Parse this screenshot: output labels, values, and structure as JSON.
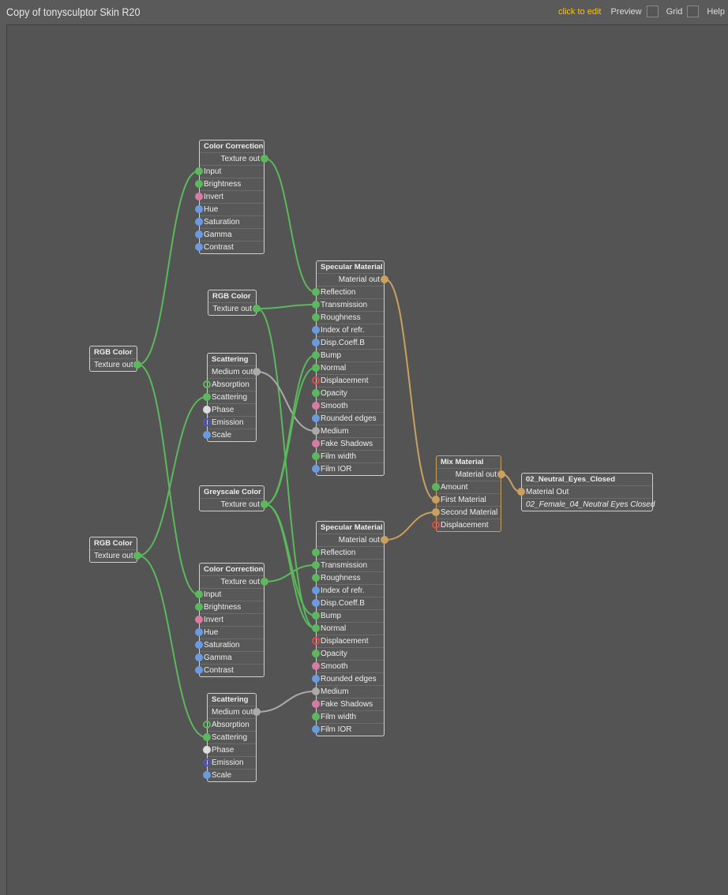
{
  "header": {
    "title": "Copy of tonysculptor Skin R20",
    "edit_link": "click to edit",
    "preview_label": "Preview",
    "grid_label": "Grid",
    "help_label": "Help"
  },
  "socket_colors": {
    "texture": "#5cb85c",
    "texture_hollow": "#5cb85c",
    "int": "#d77aa4",
    "float": "#6a9be0",
    "white": "#dddddd",
    "emission": "#4a55d0",
    "displacement": "#e04848",
    "medium": "#aaaaaa",
    "material": "#c8a060"
  },
  "nodes": [
    {
      "id": "cc1",
      "title": "Color Correction",
      "output": {
        "label": "Texture out",
        "type": "texture"
      },
      "inputs": [
        {
          "label": "Input",
          "type": "texture"
        },
        {
          "label": "Brightness",
          "type": "texture"
        },
        {
          "label": "Invert",
          "type": "int"
        },
        {
          "label": "Hue",
          "type": "float"
        },
        {
          "label": "Saturation",
          "type": "float"
        },
        {
          "label": "Gamma",
          "type": "float"
        },
        {
          "label": "Contrast",
          "type": "float"
        }
      ]
    },
    {
      "id": "rgb1",
      "title": "RGB Color",
      "output": {
        "label": "Texture out",
        "type": "texture"
      },
      "inputs": []
    },
    {
      "id": "rgbL1",
      "title": "RGB Color",
      "output": {
        "label": "Texture out",
        "type": "texture"
      },
      "inputs": []
    },
    {
      "id": "scat1",
      "title": "Scattering",
      "output": {
        "label": "Medium out",
        "type": "medium"
      },
      "inputs": [
        {
          "label": "Absorption",
          "type": "texture_hollow"
        },
        {
          "label": "Scattering",
          "type": "texture"
        },
        {
          "label": "Phase",
          "type": "white"
        },
        {
          "label": "Emission",
          "type": "emission"
        },
        {
          "label": "Scale",
          "type": "float"
        }
      ]
    },
    {
      "id": "spec1",
      "title": "Specular Material",
      "output": {
        "label": "Material out",
        "type": "material"
      },
      "inputs": [
        {
          "label": "Reflection",
          "type": "texture"
        },
        {
          "label": "Transmission",
          "type": "texture"
        },
        {
          "label": "Roughness",
          "type": "texture"
        },
        {
          "label": "Index of refr.",
          "type": "float"
        },
        {
          "label": "Disp.Coeff.B",
          "type": "float"
        },
        {
          "label": "Bump",
          "type": "texture"
        },
        {
          "label": "Normal",
          "type": "texture"
        },
        {
          "label": "Displacement",
          "type": "displacement"
        },
        {
          "label": "Opacity",
          "type": "texture"
        },
        {
          "label": "Smooth",
          "type": "int"
        },
        {
          "label": "Rounded edges",
          "type": "float"
        },
        {
          "label": "Medium",
          "type": "medium"
        },
        {
          "label": "Fake Shadows",
          "type": "int"
        },
        {
          "label": "Film width",
          "type": "texture"
        },
        {
          "label": "Film IOR",
          "type": "float"
        }
      ]
    },
    {
      "id": "grey",
      "title": "Greyscale Color",
      "output": {
        "label": "Texture out",
        "type": "texture"
      },
      "inputs": []
    },
    {
      "id": "rgbL2",
      "title": "RGB Color",
      "output": {
        "label": "Texture out",
        "type": "texture"
      },
      "inputs": []
    },
    {
      "id": "cc2",
      "title": "Color Correction",
      "output": {
        "label": "Texture out",
        "type": "texture"
      },
      "inputs": [
        {
          "label": "Input",
          "type": "texture"
        },
        {
          "label": "Brightness",
          "type": "texture"
        },
        {
          "label": "Invert",
          "type": "int"
        },
        {
          "label": "Hue",
          "type": "float"
        },
        {
          "label": "Saturation",
          "type": "float"
        },
        {
          "label": "Gamma",
          "type": "float"
        },
        {
          "label": "Contrast",
          "type": "float"
        }
      ]
    },
    {
      "id": "scat2",
      "title": "Scattering",
      "output": {
        "label": "Medium out",
        "type": "medium"
      },
      "inputs": [
        {
          "label": "Absorption",
          "type": "texture_hollow"
        },
        {
          "label": "Scattering",
          "type": "texture"
        },
        {
          "label": "Phase",
          "type": "white"
        },
        {
          "label": "Emission",
          "type": "emission"
        },
        {
          "label": "Scale",
          "type": "float"
        }
      ]
    },
    {
      "id": "spec2",
      "title": "Specular Material",
      "output": {
        "label": "Material out",
        "type": "material"
      },
      "inputs": [
        {
          "label": "Reflection",
          "type": "texture"
        },
        {
          "label": "Transmission",
          "type": "texture"
        },
        {
          "label": "Roughness",
          "type": "texture"
        },
        {
          "label": "Index of refr.",
          "type": "float"
        },
        {
          "label": "Disp.Coeff.B",
          "type": "float"
        },
        {
          "label": "Bump",
          "type": "texture"
        },
        {
          "label": "Normal",
          "type": "texture"
        },
        {
          "label": "Displacement",
          "type": "displacement"
        },
        {
          "label": "Opacity",
          "type": "texture"
        },
        {
          "label": "Smooth",
          "type": "int"
        },
        {
          "label": "Rounded edges",
          "type": "float"
        },
        {
          "label": "Medium",
          "type": "medium"
        },
        {
          "label": "Fake Shadows",
          "type": "int"
        },
        {
          "label": "Film width",
          "type": "texture"
        },
        {
          "label": "Film IOR",
          "type": "float"
        }
      ]
    },
    {
      "id": "mix",
      "title": "Mix Material",
      "output": {
        "label": "Material out",
        "type": "material"
      },
      "inputs": [
        {
          "label": "Amount",
          "type": "texture"
        },
        {
          "label": "First Material",
          "type": "material"
        },
        {
          "label": "Second Material",
          "type": "material"
        },
        {
          "label": "Displacement",
          "type": "displacement"
        }
      ]
    },
    {
      "id": "outnode",
      "title": "02_Neutral_Eyes_Closed",
      "output": null,
      "inputs": [
        {
          "label": "Material Out",
          "type": "material"
        }
      ],
      "footer": "02_Female_04_Neutral Eyes Closed"
    }
  ],
  "connections": [
    [
      "rgbL1",
      "cc1",
      0
    ],
    [
      "rgbL1",
      "cc2",
      0
    ],
    [
      "rgbL2",
      "scat1",
      1
    ],
    [
      "rgbL2",
      "scat2",
      1
    ],
    [
      "cc1",
      "spec1",
      0
    ],
    [
      "rgb1",
      "spec1",
      1
    ],
    [
      "rgb1",
      "spec2",
      6
    ],
    [
      "scat1",
      "spec1",
      11
    ],
    [
      "grey",
      "spec1",
      5
    ],
    [
      "grey",
      "spec1",
      6
    ],
    [
      "grey",
      "spec2",
      5
    ],
    [
      "grey",
      "spec2",
      6
    ],
    [
      "cc2",
      "spec2",
      1
    ],
    [
      "scat2",
      "spec2",
      11
    ],
    [
      "spec1",
      "mix",
      1
    ],
    [
      "spec2",
      "mix",
      2
    ],
    [
      "mix",
      "outnode",
      0
    ]
  ]
}
